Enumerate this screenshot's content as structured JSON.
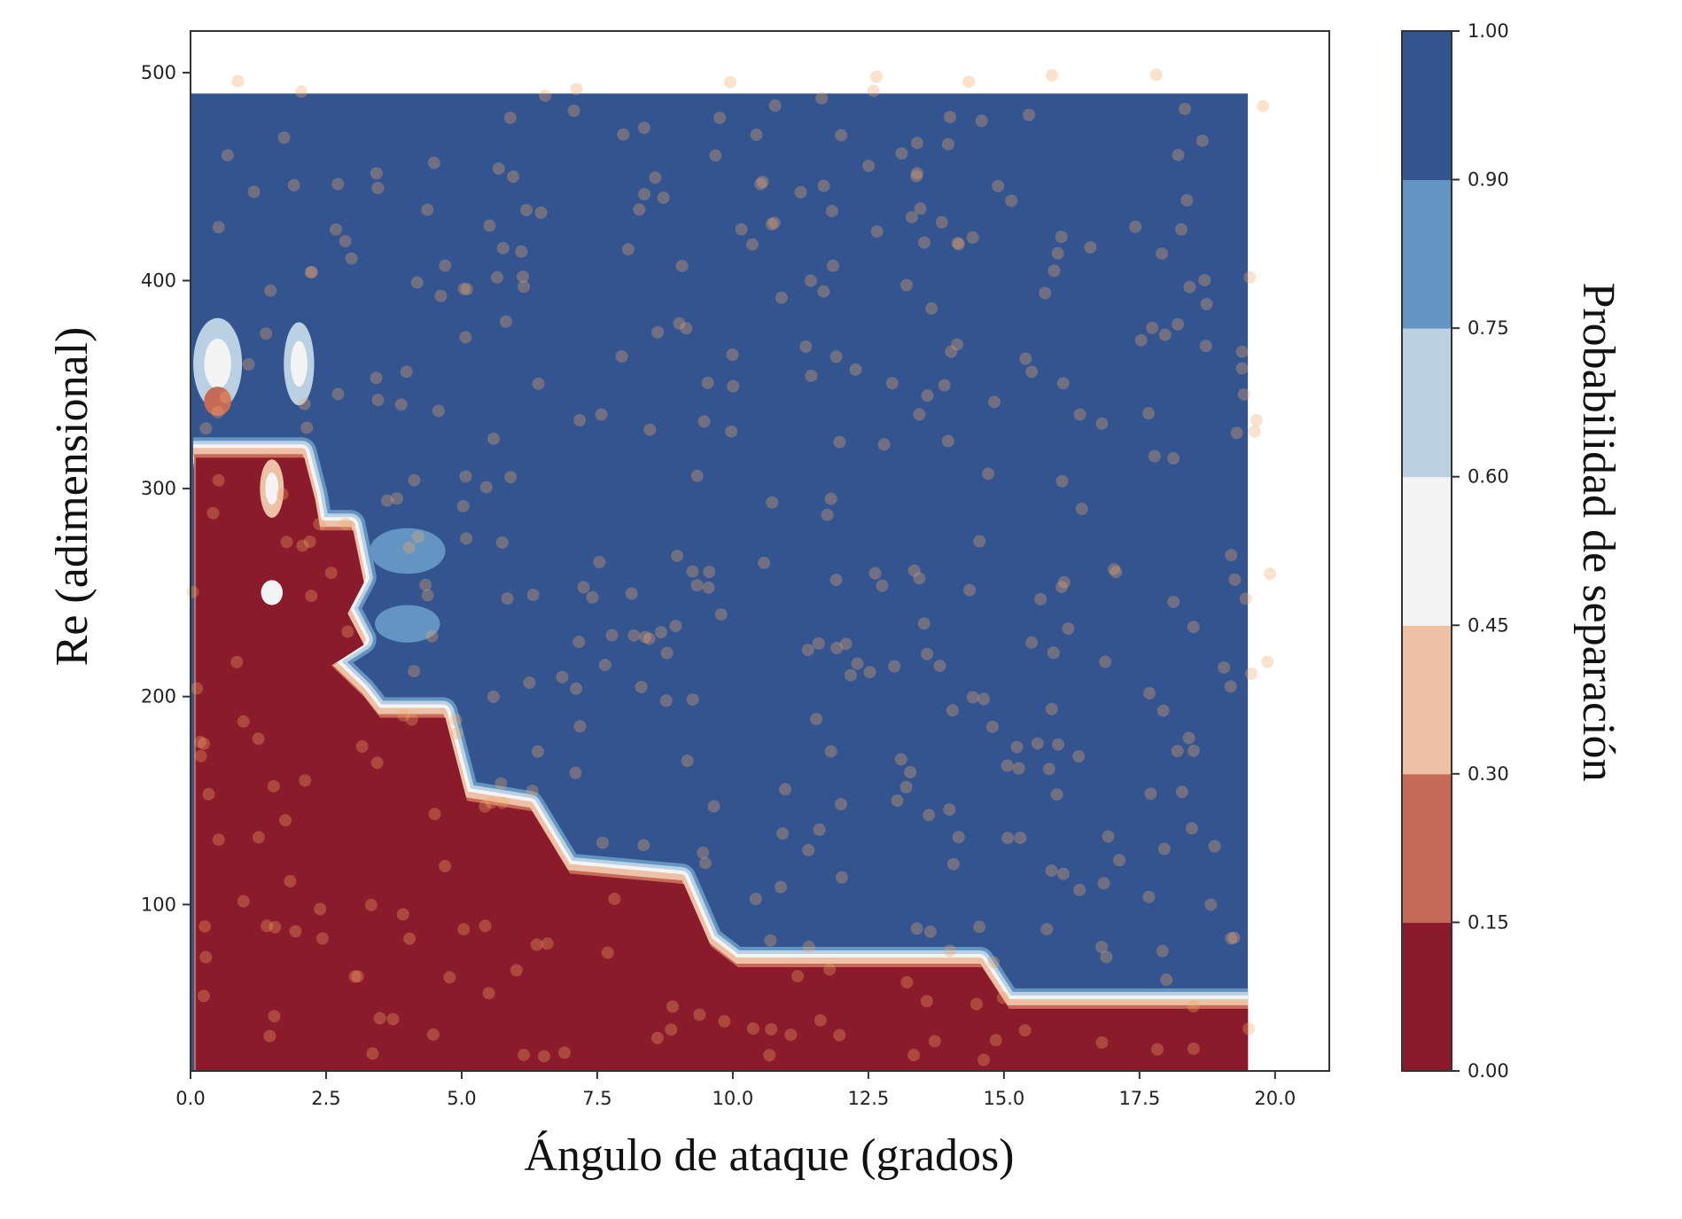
{
  "chart_data": {
    "type": "contour",
    "xlabel": "Ángulo de ataque (grados)",
    "ylabel": "Re (adimensional)",
    "colorbar_label": "Probabilidad de separación",
    "xlim": [
      0,
      21
    ],
    "ylim": [
      20,
      520
    ],
    "x_ticks": [
      {
        "value": 0,
        "label": "0.0"
      },
      {
        "value": 2.5,
        "label": "2.5"
      },
      {
        "value": 5,
        "label": "5.0"
      },
      {
        "value": 7.5,
        "label": "7.5"
      },
      {
        "value": 10,
        "label": "10.0"
      },
      {
        "value": 12.5,
        "label": "12.5"
      },
      {
        "value": 15,
        "label": "15.0"
      },
      {
        "value": 17.5,
        "label": "17.5"
      },
      {
        "value": 20,
        "label": "20.0"
      }
    ],
    "y_ticks": [
      {
        "value": 100,
        "label": "100"
      },
      {
        "value": 200,
        "label": "200"
      },
      {
        "value": 300,
        "label": "300"
      },
      {
        "value": 400,
        "label": "400"
      },
      {
        "value": 500,
        "label": "500"
      }
    ],
    "grid": false,
    "contour_extent": {
      "x": [
        0,
        19.5
      ],
      "y": [
        20,
        490
      ]
    },
    "levels": [
      {
        "range": [
          0.0,
          0.15
        ],
        "color": "#8b1a2b"
      },
      {
        "range": [
          0.15,
          0.3
        ],
        "color": "#c86a58"
      },
      {
        "range": [
          0.3,
          0.45
        ],
        "color": "#edc1a6"
      },
      {
        "range": [
          0.45,
          0.6
        ],
        "color": "#f4f4f4"
      },
      {
        "range": [
          0.6,
          0.75
        ],
        "color": "#b9d1e2"
      },
      {
        "range": [
          0.75,
          0.9
        ],
        "color": "#6494c2"
      },
      {
        "range": [
          0.9,
          1.0
        ],
        "color": "#33548f"
      }
    ],
    "colorbar_ticks": [
      "0.00",
      "0.15",
      "0.30",
      "0.45",
      "0.60",
      "0.75",
      "0.90",
      "1.00"
    ],
    "boundary": [
      [
        0,
        320
      ],
      [
        2,
        320
      ],
      [
        2.2,
        300
      ],
      [
        2.3,
        285
      ],
      [
        2.9,
        285
      ],
      [
        3.1,
        260
      ],
      [
        2.8,
        245
      ],
      [
        3.1,
        230
      ],
      [
        2.5,
        220
      ],
      [
        3.1,
        205
      ],
      [
        3.4,
        195
      ],
      [
        4.6,
        195
      ],
      [
        5,
        155
      ],
      [
        6.2,
        150
      ],
      [
        6.9,
        120
      ],
      [
        9,
        115
      ],
      [
        9.5,
        85
      ],
      [
        10,
        75
      ],
      [
        14.5,
        75
      ],
      [
        15,
        55
      ],
      [
        19.5,
        55
      ]
    ],
    "scatter_color": "#f0a868"
  }
}
